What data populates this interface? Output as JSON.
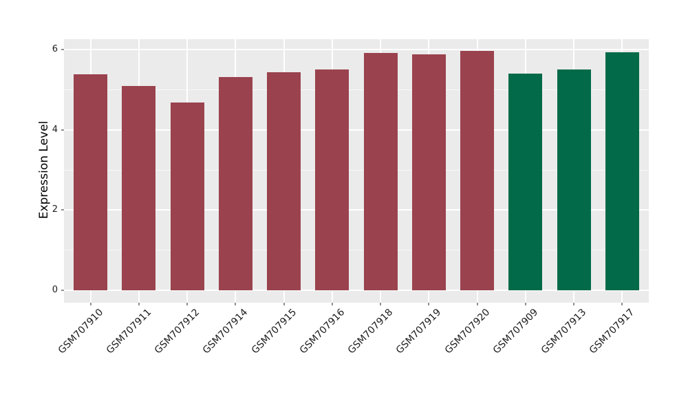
{
  "chart_data": {
    "type": "bar",
    "title": "",
    "ylabel": "Expression Level",
    "xlabel": "",
    "categories": [
      "GSM707910",
      "GSM707911",
      "GSM707912",
      "GSM707914",
      "GSM707915",
      "GSM707916",
      "GSM707918",
      "GSM707919",
      "GSM707920",
      "GSM707909",
      "GSM707913",
      "GSM707917"
    ],
    "values": [
      5.39,
      5.09,
      4.69,
      5.32,
      5.44,
      5.51,
      5.91,
      5.88,
      5.96,
      5.41,
      5.51,
      5.93
    ],
    "bar_colors": [
      "#9a424e",
      "#9a424e",
      "#9a424e",
      "#9a424e",
      "#9a424e",
      "#9a424e",
      "#9a424e",
      "#9a424e",
      "#9a424e",
      "#026a48",
      "#026a48",
      "#026a48"
    ],
    "group_colors": {
      "maroon_group": "#9a424e",
      "green_group": "#026a48"
    },
    "ytick_labels": [
      "0",
      "2",
      "4",
      "6"
    ],
    "ytick_values": [
      0,
      2,
      4,
      6
    ],
    "y_minor_tick_values": [
      1,
      3,
      5
    ],
    "ylim": [
      -0.31,
      6.26
    ],
    "xlim": [
      -0.55,
      11.55
    ],
    "bar_width_units": 0.7,
    "legend_position": "none",
    "grid": "on",
    "panel_background": "#ebebeb",
    "gridline_color": "#ffffff",
    "tick_mark_color": "#8f8f8f",
    "text_color": "#1c1c1c"
  }
}
